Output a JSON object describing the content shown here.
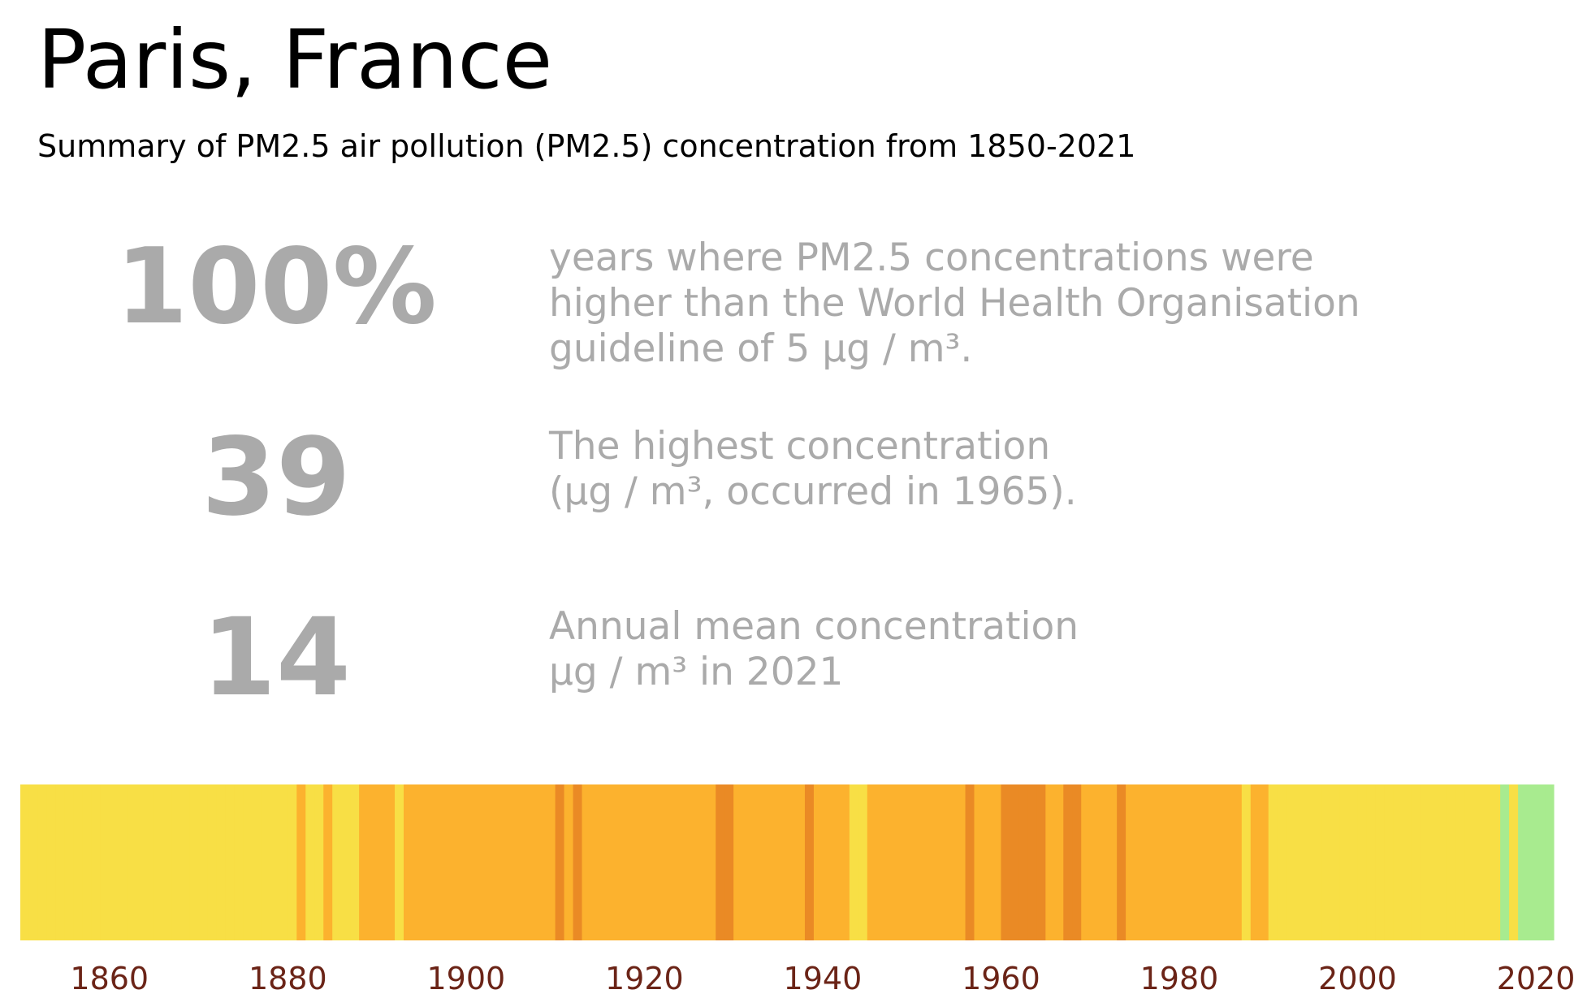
{
  "title": "Paris, France",
  "subtitle": "Summary of PM2.5 air pollution (PM2.5) concentration from 1850-2021",
  "stats": [
    {
      "value": "100%",
      "lines": [
        "years where PM2.5 concentrations were",
        "higher than the World Health Organisation",
        "guideline of 5 µg / m³."
      ]
    },
    {
      "value": "39",
      "lines": [
        "The highest concentration",
        "(µg / m³, occurred in 1965)."
      ]
    },
    {
      "value": "14",
      "lines": [
        "Annual mean concentration",
        "µg / m³ in 2021"
      ]
    }
  ],
  "colors": {
    "band_lightgreen": "#a8eb8f",
    "band_yellow": "#f8df45",
    "band_orange": "#fcb22e",
    "band_darkorange": "#ea8a25",
    "tick_label": "#6b2417",
    "stat_text": "#aaaaaa"
  },
  "chart_data": {
    "type": "heatmap",
    "title": "",
    "xlabel": "",
    "ylabel": "",
    "xlim": [
      1850,
      2022
    ],
    "x_ticks": [
      "1860",
      "1880",
      "1900",
      "1920",
      "1940",
      "1960",
      "1980",
      "2000",
      "2020"
    ],
    "legend": "none",
    "grid": false,
    "note_levels": "band color by concentration level: 1 = lightgreen, 2 = yellow, 3 = orange, 4 = darkorange",
    "years": [
      1850,
      1851,
      1852,
      1853,
      1854,
      1855,
      1856,
      1857,
      1858,
      1859,
      1860,
      1861,
      1862,
      1863,
      1864,
      1865,
      1866,
      1867,
      1868,
      1869,
      1870,
      1871,
      1872,
      1873,
      1874,
      1875,
      1876,
      1877,
      1878,
      1879,
      1880,
      1881,
      1882,
      1883,
      1884,
      1885,
      1886,
      1887,
      1888,
      1889,
      1890,
      1891,
      1892,
      1893,
      1894,
      1895,
      1896,
      1897,
      1898,
      1899,
      1900,
      1901,
      1902,
      1903,
      1904,
      1905,
      1906,
      1907,
      1908,
      1909,
      1910,
      1911,
      1912,
      1913,
      1914,
      1915,
      1916,
      1917,
      1918,
      1919,
      1920,
      1921,
      1922,
      1923,
      1924,
      1925,
      1926,
      1927,
      1928,
      1929,
      1930,
      1931,
      1932,
      1933,
      1934,
      1935,
      1936,
      1937,
      1938,
      1939,
      1940,
      1941,
      1942,
      1943,
      1944,
      1945,
      1946,
      1947,
      1948,
      1949,
      1950,
      1951,
      1952,
      1953,
      1954,
      1955,
      1956,
      1957,
      1958,
      1959,
      1960,
      1961,
      1962,
      1963,
      1964,
      1965,
      1966,
      1967,
      1968,
      1969,
      1970,
      1971,
      1972,
      1973,
      1974,
      1975,
      1976,
      1977,
      1978,
      1979,
      1980,
      1981,
      1982,
      1983,
      1984,
      1985,
      1986,
      1987,
      1988,
      1989,
      1990,
      1991,
      1992,
      1993,
      1994,
      1995,
      1996,
      1997,
      1998,
      1999,
      2000,
      2001,
      2002,
      2003,
      2004,
      2005,
      2006,
      2007,
      2008,
      2009,
      2010,
      2011,
      2012,
      2013,
      2014,
      2015,
      2016,
      2017,
      2018,
      2019,
      2020,
      2021
    ],
    "levels": [
      2,
      2,
      2,
      2,
      2,
      2,
      2,
      2,
      2,
      2,
      2,
      2,
      2,
      2,
      2,
      2,
      2,
      2,
      2,
      2,
      2,
      2,
      2,
      2,
      2,
      2,
      2,
      2,
      2,
      2,
      2,
      3,
      2,
      2,
      3,
      2,
      2,
      2,
      3,
      3,
      3,
      3,
      2,
      3,
      3,
      3,
      3,
      3,
      3,
      3,
      3,
      3,
      3,
      3,
      3,
      3,
      3,
      3,
      3,
      3,
      4,
      3,
      4,
      3,
      3,
      3,
      3,
      3,
      3,
      3,
      3,
      3,
      3,
      3,
      3,
      3,
      3,
      3,
      4,
      4,
      3,
      3,
      3,
      3,
      3,
      3,
      3,
      3,
      4,
      3,
      3,
      3,
      3,
      2,
      2,
      3,
      3,
      3,
      3,
      3,
      3,
      3,
      3,
      3,
      3,
      3,
      4,
      3,
      3,
      3,
      4,
      4,
      4,
      4,
      4,
      3,
      3,
      4,
      4,
      3,
      3,
      3,
      3,
      4,
      3,
      3,
      3,
      3,
      3,
      3,
      3,
      3,
      3,
      3,
      3,
      3,
      3,
      2,
      3,
      3,
      2,
      2,
      2,
      2,
      2,
      2,
      2,
      2,
      2,
      2,
      2,
      2,
      2,
      2,
      2,
      2,
      2,
      2,
      2,
      2,
      2,
      2,
      2,
      2,
      2,
      2,
      1,
      2,
      1,
      1,
      1,
      1
    ]
  }
}
